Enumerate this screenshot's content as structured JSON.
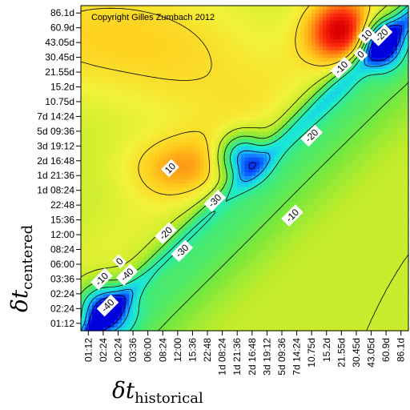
{
  "chart_data": {
    "type": "heatmap",
    "annotation": "Copyright Gilles Zumbach 2012",
    "xlabel": {
      "symbol": "δt",
      "subscript": "historical"
    },
    "ylabel": {
      "symbol": "δt",
      "subscript": "centered"
    },
    "x_ticks": [
      "01:12",
      "02:24",
      "02:24",
      "03:36",
      "06:00",
      "08:24",
      "12:00",
      "15:36",
      "22:48",
      "1d 08:24",
      "1d 21:36",
      "2d 16:48",
      "3d 19:12",
      "5d 09:36",
      "7d 14:24",
      "10.75d",
      "15.2d",
      "21.55d",
      "30.45d",
      "43.05d",
      "60.9d",
      "86.1d"
    ],
    "y_ticks": [
      "86.1d",
      "60.9d",
      "43.05d",
      "30.45d",
      "21.55d",
      "15.2d",
      "10.75d",
      "7d 14:24",
      "5d 09:36",
      "3d 19:12",
      "2d 16:48",
      "1d 21:36",
      "1d 08:24",
      "22:48",
      "15:36",
      "12:00",
      "08:24",
      "06:00",
      "03:36",
      "02:24",
      "02:24",
      "01:12"
    ],
    "contour_levels": [
      -40,
      -30,
      -20,
      -10,
      0,
      10
    ],
    "contour_labels": [
      {
        "text": "10",
        "cx": 5.5,
        "cy": 10.5
      },
      {
        "text": "10",
        "cx": 18.7,
        "cy": 19.5
      },
      {
        "text": "0",
        "cx": 18.3,
        "cy": 18.2
      },
      {
        "text": "-10",
        "cx": 17.0,
        "cy": 17.3
      },
      {
        "text": "-20",
        "cx": 19.7,
        "cy": 19.5
      },
      {
        "text": "-20",
        "cx": 15.0,
        "cy": 12.7
      },
      {
        "text": "-10",
        "cx": 13.7,
        "cy": 7.3
      },
      {
        "text": "-30",
        "cx": 8.5,
        "cy": 8.3
      },
      {
        "text": "-20",
        "cx": 5.2,
        "cy": 6.1
      },
      {
        "text": "-30",
        "cx": 6.3,
        "cy": 4.9
      },
      {
        "text": "0",
        "cx": 2.1,
        "cy": 4.2
      },
      {
        "text": "-40",
        "cx": 2.6,
        "cy": 3.3
      },
      {
        "text": "-10",
        "cx": 0.9,
        "cy": 3.0
      },
      {
        "text": "-40",
        "cx": 1.3,
        "cy": 1.2
      }
    ],
    "features": [
      {
        "label": "peak",
        "cx": 17.0,
        "cy": 19.8,
        "sx": 1.6,
        "sy": 1.6,
        "amp": 32
      },
      {
        "label": "peak",
        "cx": 6.1,
        "cy": 10.6,
        "sx": 2.6,
        "sy": 1.5,
        "amp": 14
      },
      {
        "label": "peak",
        "cx": 1.0,
        "cy": 19.5,
        "sx": 6.0,
        "sy": 2.8,
        "amp": 12
      },
      {
        "label": "peak",
        "cx": 8.0,
        "cy": 16.0,
        "sx": 4.0,
        "sy": 3.0,
        "amp": 6
      },
      {
        "label": "trough",
        "cx": 10.3,
        "cy": 11.3,
        "sx": 1.1,
        "sy": 1.1,
        "amp": -36
      },
      {
        "label": "trough",
        "cx": 19.7,
        "cy": 19.0,
        "sx": 0.9,
        "sy": 1.1,
        "amp": -40
      },
      {
        "label": "trough",
        "cx": 1.0,
        "cy": 1.0,
        "sx": 1.2,
        "sy": 1.2,
        "amp": -40
      }
    ],
    "colorscale": [
      "#0000dd",
      "#0a55ff",
      "#1ab8ff",
      "#19ead2",
      "#3eea7a",
      "#79e83c",
      "#bfec2a",
      "#f2f23a",
      "#ffcf1e",
      "#ff8c12",
      "#ff3010",
      "#dd0000"
    ],
    "zlim": [
      -45,
      35
    ]
  }
}
